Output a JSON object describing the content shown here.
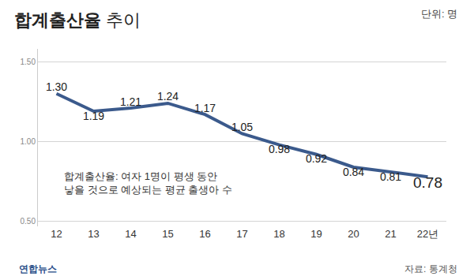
{
  "chart_data": {
    "type": "line",
    "title": "합계출산율 추이",
    "unit": "단위: 명",
    "note": [
      "합계출산율: 여자 1명이 평생 동안",
      "낳을 것으로 예상되는 평균 출생아 수"
    ],
    "source": "자료: 통계청",
    "credit": "연합뉴스",
    "categories": [
      "12",
      "13",
      "14",
      "15",
      "16",
      "17",
      "18",
      "19",
      "20",
      "21",
      "22년"
    ],
    "values": [
      1.3,
      1.19,
      1.21,
      1.24,
      1.17,
      1.05,
      0.98,
      0.92,
      0.84,
      0.81,
      0.78
    ],
    "value_labels": [
      "1.30",
      "1.19",
      "1.21",
      "1.24",
      "1.17",
      "1.05",
      "0.98",
      "0.92",
      "0.84",
      "0.81",
      "0.78"
    ],
    "color": "#3b5a8c",
    "marker": "none",
    "line_style": "solid",
    "data_labels": true,
    "ylim": [
      0.47,
      1.58
    ],
    "yticks": [
      {
        "value": 0.5,
        "label": "0.50"
      },
      {
        "value": 1.0,
        "label": "1.00"
      },
      {
        "value": 1.5,
        "label": "1.50"
      }
    ],
    "grid": true
  }
}
